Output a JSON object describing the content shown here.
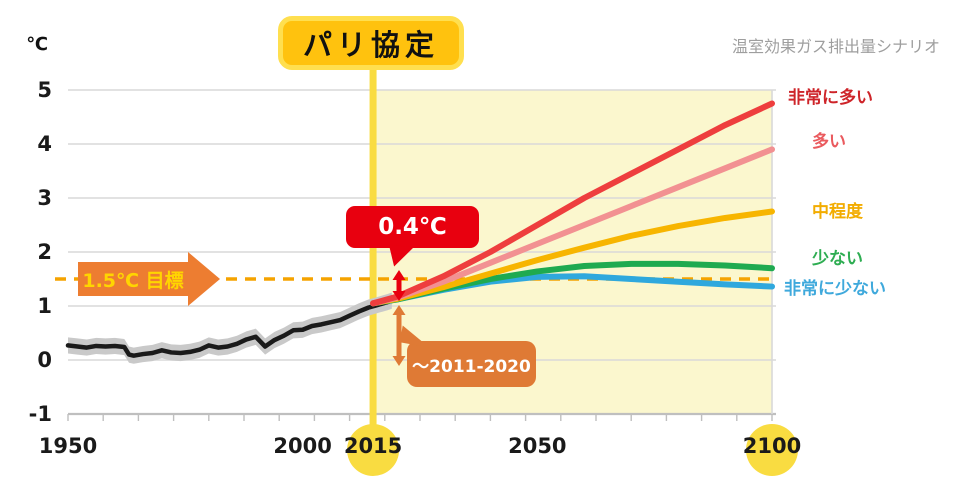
{
  "chart_data": {
    "type": "line",
    "title": "パリ協定",
    "note": "温室効果ガス排出量シナリオ",
    "y_unit": "℃",
    "x_range": [
      1950,
      2100
    ],
    "y_range": [
      -1,
      5
    ],
    "y_ticks": [
      5,
      4,
      3,
      2,
      1,
      0,
      -1
    ],
    "x_ticks": [
      {
        "label": "1950",
        "year": 1950,
        "highlight": false
      },
      {
        "label": "2000",
        "year": 2000,
        "highlight": false
      },
      {
        "label": "2015",
        "year": 2015,
        "highlight": true
      },
      {
        "label": "2050",
        "year": 2050,
        "highlight": false
      },
      {
        "label": "2100",
        "year": 2100,
        "highlight": true
      }
    ],
    "highlight_start_year": 2015,
    "grid": true,
    "legend_position": "right",
    "colors": {
      "region": "#FBF7CE",
      "timeline": "#F9DC41",
      "grid": "#D9D9D9",
      "axis": "#BFBFBF",
      "paris_fill": "#FFC20E",
      "paris_border": "#FFDF4F",
      "note_gray": "#9E9E9E"
    },
    "target_line": {
      "value": 1.5,
      "label": "1.5℃ 目標",
      "color": "#F5A300",
      "badge_color": "#ED7D31",
      "text_color": "#FFD500"
    },
    "historical": {
      "color": "#1A1A1A",
      "band_color": "#C9C9C9",
      "band_halfwidth": 0.15,
      "x": [
        1950,
        1952,
        1954,
        1956,
        1958,
        1960,
        1962,
        1963,
        1964,
        1966,
        1968,
        1970,
        1972,
        1974,
        1976,
        1978,
        1980,
        1982,
        1984,
        1986,
        1988,
        1990,
        1992,
        1994,
        1996,
        1998,
        2000,
        2002,
        2004,
        2006,
        2008,
        2010,
        2012,
        2014,
        2016,
        2018,
        2019
      ],
      "y": [
        0.27,
        0.25,
        0.23,
        0.26,
        0.25,
        0.26,
        0.24,
        0.1,
        0.08,
        0.11,
        0.13,
        0.18,
        0.14,
        0.13,
        0.15,
        0.19,
        0.27,
        0.23,
        0.25,
        0.3,
        0.38,
        0.43,
        0.25,
        0.37,
        0.45,
        0.55,
        0.56,
        0.63,
        0.66,
        0.7,
        0.74,
        0.82,
        0.9,
        0.97,
        1.02,
        1.07,
        1.1
      ]
    },
    "projection_x": [
      2015,
      2020,
      2030,
      2040,
      2050,
      2060,
      2070,
      2080,
      2090,
      2100
    ],
    "series": [
      {
        "id": "very_high",
        "label": "非常に多い",
        "color": "#EE3E3E",
        "label_color": "#CE2429",
        "values": [
          1.05,
          1.17,
          1.55,
          2.0,
          2.5,
          3.0,
          3.45,
          3.9,
          4.35,
          4.75
        ],
        "label_dx": 4,
        "label_dy": -6
      },
      {
        "id": "high",
        "label": "多い",
        "color": "#F29192",
        "label_color": "#EA5A5E",
        "values": [
          1.05,
          1.15,
          1.45,
          1.8,
          2.15,
          2.5,
          2.85,
          3.2,
          3.55,
          3.9
        ],
        "label_dx": 28,
        "label_dy": -7
      },
      {
        "id": "medium",
        "label": "中程度",
        "color": "#F7B500",
        "label_color": "#F2AC00",
        "values": [
          1.05,
          1.13,
          1.35,
          1.6,
          1.85,
          2.08,
          2.3,
          2.48,
          2.63,
          2.75
        ],
        "label_dx": 28,
        "label_dy": 0
      },
      {
        "id": "low",
        "label": "少ない",
        "color": "#1FAA50",
        "label_color": "#2EAD52",
        "values": [
          1.05,
          1.12,
          1.32,
          1.5,
          1.64,
          1.74,
          1.78,
          1.78,
          1.75,
          1.7
        ],
        "label_dx": 28,
        "label_dy": -9
      },
      {
        "id": "very_low",
        "label": "非常に少ない",
        "color": "#2FA8DD",
        "label_color": "#3FA9DC",
        "values": [
          1.05,
          1.12,
          1.3,
          1.45,
          1.54,
          1.55,
          1.5,
          1.45,
          1.4,
          1.36
        ],
        "label_dx": 0,
        "label_dy": 2
      }
    ],
    "annotations": {
      "gap": {
        "label": "0.4℃",
        "color": "#E8000F"
      },
      "baseline": {
        "label": "〜2011-2020",
        "color": "#DF7A35"
      }
    }
  }
}
